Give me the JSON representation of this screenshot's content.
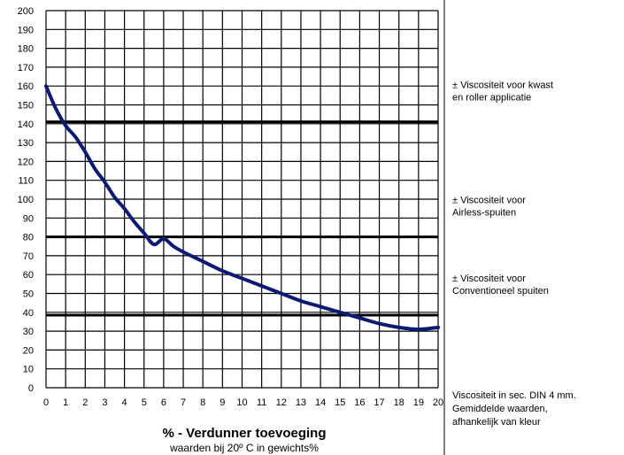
{
  "chart_data": {
    "type": "line",
    "xlabel": "% - Verdunner toevoeging",
    "xlabel_sub": "waarden bij  20º C in gewichts%",
    "xlim": [
      0,
      20
    ],
    "ylim": [
      0,
      200
    ],
    "x_ticks": [
      0,
      1,
      2,
      3,
      4,
      5,
      6,
      7,
      8,
      9,
      10,
      11,
      12,
      13,
      14,
      15,
      16,
      17,
      18,
      19,
      20
    ],
    "y_ticks": [
      0,
      10,
      20,
      30,
      40,
      50,
      60,
      70,
      80,
      90,
      100,
      110,
      120,
      130,
      140,
      150,
      160,
      170,
      180,
      190,
      200
    ],
    "grid": true,
    "series": [
      {
        "color": "#0d1a73",
        "x": [
          0,
          0.5,
          1,
          1.5,
          2,
          2.5,
          3,
          3.5,
          4,
          4.5,
          5,
          5.5,
          6,
          6.5,
          7,
          8,
          9,
          10,
          11,
          12,
          13,
          14,
          15,
          16,
          17,
          18,
          19,
          20
        ],
        "y": [
          160,
          148,
          139,
          133,
          125,
          116,
          109,
          101,
          95,
          88,
          82,
          76,
          79,
          75,
          72,
          67,
          62,
          58,
          54,
          50,
          46,
          43,
          40,
          37,
          34,
          32,
          31,
          32
        ]
      }
    ],
    "reference_lines": [
      {
        "y": 141,
        "label": [
          "± Viscositeit voor kwast",
          "en roller applicatie"
        ]
      },
      {
        "y": 80,
        "label": [
          "± Viscositeit  voor",
          "Airless-spuiten"
        ]
      },
      {
        "y": 38.5,
        "label": [
          "± Viscositeit voor",
          "Conventioneel spuiten"
        ]
      }
    ],
    "footnote": [
      "Viscositeit in sec. DIN 4 mm.",
      "Gemiddelde waarden,",
      "afhankelijk van kleur"
    ]
  }
}
